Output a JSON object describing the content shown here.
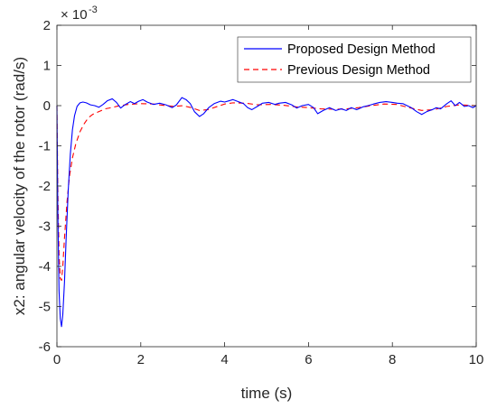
{
  "chart_data": {
    "type": "line",
    "xlabel": "time (s)",
    "ylabel": "x2: angular velocity of the rotor (rad/s)",
    "xlim": [
      0,
      10
    ],
    "ylim": [
      -6,
      2
    ],
    "xticks": [
      0,
      2,
      4,
      6,
      8,
      10
    ],
    "yticks": [
      -6,
      -5,
      -4,
      -3,
      -2,
      -1,
      0,
      1,
      2
    ],
    "y_exponent_base": "× 10",
    "y_exponent_power": "-3",
    "grid": false,
    "legend_position": "top-right",
    "series": [
      {
        "name": "Proposed Design Method",
        "color": "#0000ff",
        "dash": "solid",
        "points": [
          [
            0,
            0
          ],
          [
            0.02,
            -2.5
          ],
          [
            0.05,
            -4.6
          ],
          [
            0.08,
            -5.3
          ],
          [
            0.11,
            -5.5
          ],
          [
            0.14,
            -5.2
          ],
          [
            0.18,
            -4.4
          ],
          [
            0.22,
            -3.3
          ],
          [
            0.27,
            -2.1
          ],
          [
            0.32,
            -1.2
          ],
          [
            0.37,
            -0.6
          ],
          [
            0.42,
            -0.25
          ],
          [
            0.48,
            -0.02
          ],
          [
            0.55,
            0.07
          ],
          [
            0.62,
            0.09
          ],
          [
            0.7,
            0.07
          ],
          [
            0.8,
            0.02
          ],
          [
            0.9,
            0.0
          ],
          [
            1.0,
            -0.04
          ],
          [
            1.1,
            0.03
          ],
          [
            1.2,
            0.12
          ],
          [
            1.32,
            0.17
          ],
          [
            1.42,
            0.08
          ],
          [
            1.52,
            -0.06
          ],
          [
            1.62,
            0.02
          ],
          [
            1.75,
            0.1
          ],
          [
            1.85,
            0.05
          ],
          [
            1.95,
            0.11
          ],
          [
            2.05,
            0.15
          ],
          [
            2.15,
            0.09
          ],
          [
            2.3,
            0.03
          ],
          [
            2.45,
            0.06
          ],
          [
            2.6,
            0.02
          ],
          [
            2.75,
            -0.05
          ],
          [
            2.85,
            0.02
          ],
          [
            2.98,
            0.2
          ],
          [
            3.08,
            0.15
          ],
          [
            3.18,
            0.05
          ],
          [
            3.28,
            -0.15
          ],
          [
            3.4,
            -0.27
          ],
          [
            3.5,
            -0.2
          ],
          [
            3.62,
            -0.05
          ],
          [
            3.75,
            0.05
          ],
          [
            3.9,
            0.11
          ],
          [
            4.0,
            0.09
          ],
          [
            4.1,
            0.12
          ],
          [
            4.2,
            0.15
          ],
          [
            4.32,
            0.1
          ],
          [
            4.45,
            0.05
          ],
          [
            4.55,
            -0.05
          ],
          [
            4.65,
            -0.1
          ],
          [
            4.78,
            -0.02
          ],
          [
            4.9,
            0.06
          ],
          [
            5.05,
            0.08
          ],
          [
            5.2,
            0.03
          ],
          [
            5.3,
            0.06
          ],
          [
            5.45,
            0.08
          ],
          [
            5.6,
            0.02
          ],
          [
            5.72,
            -0.06
          ],
          [
            5.85,
            0.0
          ],
          [
            6.0,
            0.03
          ],
          [
            6.12,
            -0.05
          ],
          [
            6.22,
            -0.2
          ],
          [
            6.35,
            -0.12
          ],
          [
            6.5,
            -0.05
          ],
          [
            6.65,
            -0.12
          ],
          [
            6.78,
            -0.08
          ],
          [
            6.9,
            -0.12
          ],
          [
            7.02,
            -0.05
          ],
          [
            7.15,
            -0.1
          ],
          [
            7.3,
            -0.03
          ],
          [
            7.42,
            0.0
          ],
          [
            7.55,
            0.04
          ],
          [
            7.7,
            0.08
          ],
          [
            7.85,
            0.1
          ],
          [
            8.0,
            0.08
          ],
          [
            8.12,
            0.06
          ],
          [
            8.25,
            0.05
          ],
          [
            8.35,
            0.0
          ],
          [
            8.45,
            -0.05
          ],
          [
            8.58,
            -0.15
          ],
          [
            8.7,
            -0.22
          ],
          [
            8.82,
            -0.15
          ],
          [
            8.95,
            -0.1
          ],
          [
            9.05,
            -0.05
          ],
          [
            9.15,
            -0.08
          ],
          [
            9.3,
            0.05
          ],
          [
            9.4,
            0.12
          ],
          [
            9.5,
            0.0
          ],
          [
            9.6,
            0.08
          ],
          [
            9.72,
            -0.02
          ],
          [
            9.82,
            0.0
          ],
          [
            9.92,
            -0.05
          ],
          [
            10.0,
            0.0
          ]
        ]
      },
      {
        "name": "Previous Design Method",
        "color": "#ff0000",
        "dash": "dashed",
        "points": [
          [
            0,
            0
          ],
          [
            0.02,
            -2.0
          ],
          [
            0.05,
            -3.7
          ],
          [
            0.08,
            -4.3
          ],
          [
            0.11,
            -4.35
          ],
          [
            0.14,
            -4.0
          ],
          [
            0.18,
            -3.3
          ],
          [
            0.24,
            -2.4
          ],
          [
            0.3,
            -1.75
          ],
          [
            0.37,
            -1.3
          ],
          [
            0.45,
            -0.95
          ],
          [
            0.55,
            -0.65
          ],
          [
            0.65,
            -0.45
          ],
          [
            0.75,
            -0.3
          ],
          [
            0.85,
            -0.22
          ],
          [
            1.0,
            -0.15
          ],
          [
            1.15,
            -0.08
          ],
          [
            1.3,
            -0.05
          ],
          [
            1.5,
            0.0
          ],
          [
            1.7,
            0.03
          ],
          [
            2.0,
            0.05
          ],
          [
            2.3,
            0.04
          ],
          [
            2.6,
            0.0
          ],
          [
            2.8,
            -0.02
          ],
          [
            3.0,
            0.0
          ],
          [
            3.2,
            -0.05
          ],
          [
            3.4,
            -0.12
          ],
          [
            3.6,
            -0.1
          ],
          [
            3.8,
            -0.03
          ],
          [
            4.0,
            0.04
          ],
          [
            4.2,
            0.07
          ],
          [
            4.5,
            0.06
          ],
          [
            4.8,
            0.02
          ],
          [
            5.1,
            0.03
          ],
          [
            5.4,
            0.01
          ],
          [
            5.7,
            -0.03
          ],
          [
            6.0,
            -0.05
          ],
          [
            6.3,
            -0.08
          ],
          [
            6.6,
            -0.09
          ],
          [
            6.9,
            -0.08
          ],
          [
            7.2,
            -0.05
          ],
          [
            7.5,
            0.0
          ],
          [
            7.8,
            0.04
          ],
          [
            8.1,
            0.03
          ],
          [
            8.4,
            -0.05
          ],
          [
            8.7,
            -0.12
          ],
          [
            9.0,
            -0.1
          ],
          [
            9.3,
            -0.02
          ],
          [
            9.6,
            0.02
          ],
          [
            10.0,
            0.0
          ]
        ]
      }
    ]
  }
}
